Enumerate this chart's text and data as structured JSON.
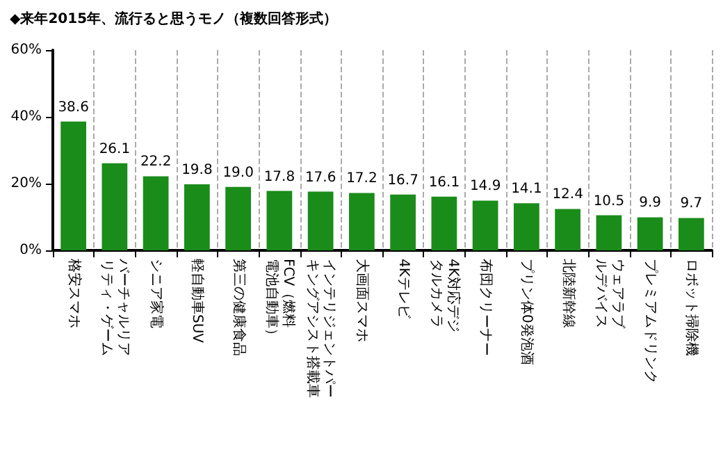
{
  "chart_data": {
    "type": "bar",
    "title": "◆来年2015年、流行ると思うモノ（複数回答形式）",
    "categories": [
      "格安スマホ",
      "バーチャルリアリティ・ゲーム",
      "シニア家電",
      "軽自動車SUV",
      "第三の健康食品",
      "FCV（燃料電池自動車）",
      "インテリジェントパーキングアシスト搭載車",
      "大画面スマホ",
      "4Kテレビ",
      "4K対応デジタルカメラ",
      "布団クリーナー",
      "プリン体0発泡酒",
      "北陸新幹線",
      "ウェアラブルデバイス",
      "プレミアムドリンク",
      "ロボット掃除機"
    ],
    "values": [
      38.6,
      26.1,
      22.2,
      19.8,
      19.0,
      17.8,
      17.6,
      17.2,
      16.7,
      16.1,
      14.9,
      14.1,
      12.4,
      10.5,
      9.9,
      9.7
    ],
    "value_labels": [
      "38.6",
      "26.1",
      "22.2",
      "19.8",
      "19.0",
      "17.8",
      "17.6",
      "17.2",
      "16.7",
      "16.1",
      "14.9",
      "14.1",
      "12.4",
      "10.5",
      "9.9",
      "9.7"
    ],
    "color": "#1a8c1a",
    "ylim": [
      0,
      60
    ],
    "yticks": [
      {
        "value": 0,
        "label": "0%"
      },
      {
        "value": 20,
        "label": "20%"
      },
      {
        "value": 40,
        "label": "40%"
      },
      {
        "value": 60,
        "label": "60%"
      }
    ],
    "grid": "x"
  }
}
